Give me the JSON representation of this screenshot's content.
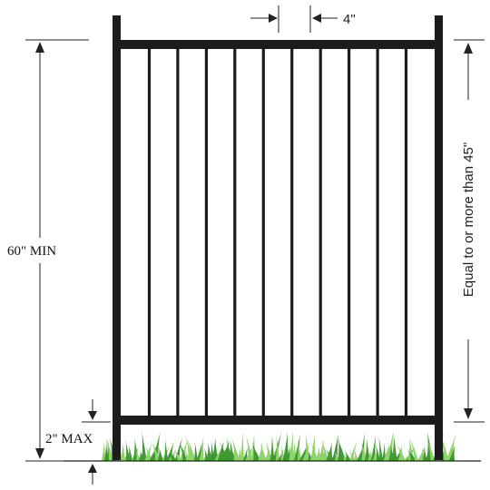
{
  "diagram": {
    "labels": {
      "picket_spacing": "4\"",
      "total_height": "60\" MIN",
      "rail_spacing": "Equal to or more than 45\"",
      "bottom_gap": "2\" MAX"
    },
    "picket_count": 10,
    "colors": {
      "frame": "#1c1c1c",
      "picket": "#1c1c1c",
      "dimension": "#222222",
      "grass_dark": "#3f9a33",
      "grass_light": "#8ed46a"
    }
  }
}
